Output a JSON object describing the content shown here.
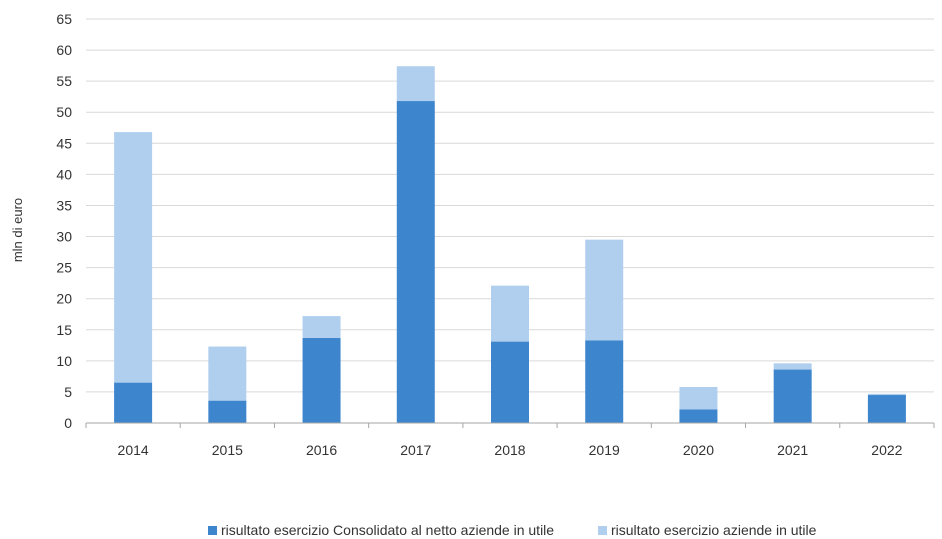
{
  "chart_data": {
    "type": "bar",
    "stacked": true,
    "categories": [
      "2014",
      "2015",
      "2016",
      "2017",
      "2018",
      "2019",
      "2020",
      "2021",
      "2022"
    ],
    "series": [
      {
        "name": "risultato esercizio Consolidato al netto aziende in utile",
        "color": "#3d85cc",
        "values": [
          6.5,
          3.6,
          13.7,
          51.8,
          13.1,
          13.3,
          2.2,
          8.6,
          4.5
        ]
      },
      {
        "name": "risultato esercizio aziende in utile",
        "color": "#b0cfee",
        "values": [
          40.3,
          8.7,
          3.5,
          5.6,
          9.0,
          16.2,
          3.6,
          1.0,
          0.2
        ]
      }
    ],
    "ylabel": "mln di euro",
    "ylim": [
      0,
      65
    ],
    "yticks": [
      "0",
      "5",
      "10",
      "15",
      "20",
      "25",
      "30",
      "35",
      "40",
      "45",
      "50",
      "55",
      "60",
      "65"
    ],
    "grid": true,
    "legend_position": "bottom"
  }
}
